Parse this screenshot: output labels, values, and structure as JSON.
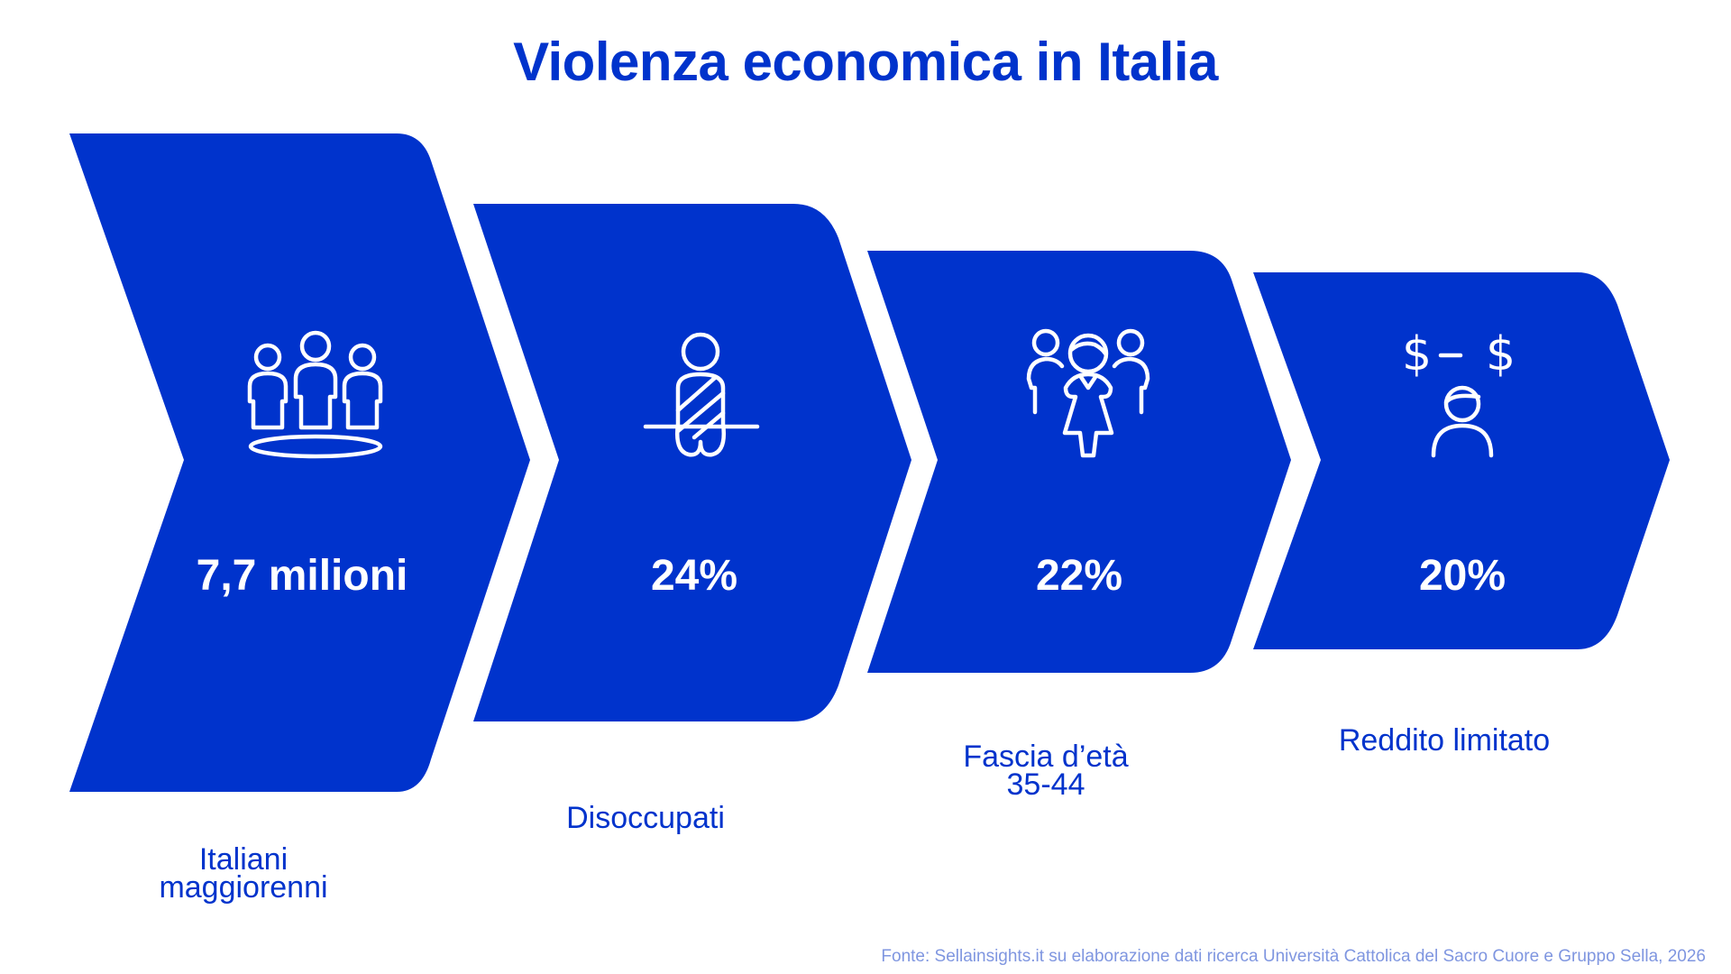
{
  "chart_data": {
    "type": "funnel",
    "title": "Violenza economica in Italia",
    "categories": [
      "Italiani\nmaggiorenni",
      "Disoccupati",
      "Fascia d’età\n35-44",
      "Reddito limitato"
    ],
    "value_labels": [
      "7,7 milioni",
      "24%",
      "22%",
      "20%"
    ],
    "icons": [
      "group-of-people-icon",
      "seated-person-icon",
      "family-group-icon",
      "money-person-icon"
    ],
    "source": "Fonte: Sellainsights.it su elaborazione dati ricerca Università Cattolica del Sacro Cuore e Gruppo Sella, 2026"
  },
  "colors": {
    "primary": "#0033cc",
    "source_text": "#7f96e0",
    "background": "#ffffff"
  }
}
